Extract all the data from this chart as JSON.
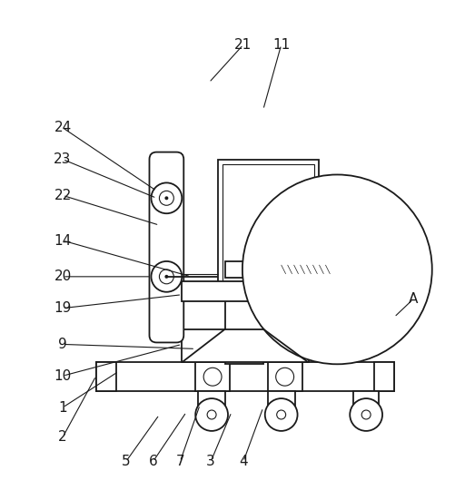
{
  "line_color": "#1a1a1a",
  "bg_color": "#ffffff",
  "lw": 1.3,
  "tlw": 0.8
}
